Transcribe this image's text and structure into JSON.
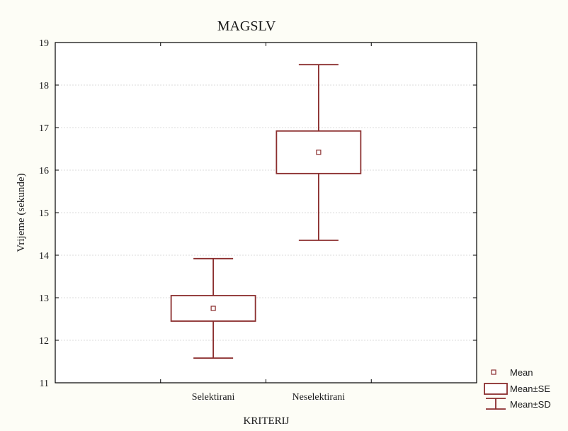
{
  "chart_data": {
    "type": "box",
    "title": "MAGSLV",
    "xlabel": "KRITERIJ",
    "ylabel": "Vrijeme (sekunde)",
    "ylim": [
      11,
      19
    ],
    "yticks": [
      "11",
      "12",
      "13",
      "14",
      "15",
      "16",
      "17",
      "18",
      "19"
    ],
    "grid": true,
    "categories": [
      "Selektirani",
      "Neselektirani"
    ],
    "series": [
      {
        "category": "Selektirani",
        "mean": 12.75,
        "se_low": 12.45,
        "se_high": 13.05,
        "sd_low": 11.58,
        "sd_high": 13.92
      },
      {
        "category": "Neselektirani",
        "mean": 16.42,
        "se_low": 15.92,
        "se_high": 16.92,
        "sd_low": 14.35,
        "sd_high": 18.48
      }
    ],
    "legend": {
      "placement": "bottom-right",
      "entries": [
        "Mean",
        "Mean±SE",
        "Mean±SD"
      ]
    },
    "colors": {
      "marks": "#8b2e2e",
      "background": "#fdfdf6",
      "plot": "#ffffff",
      "grid": "#cfcfcf"
    }
  }
}
